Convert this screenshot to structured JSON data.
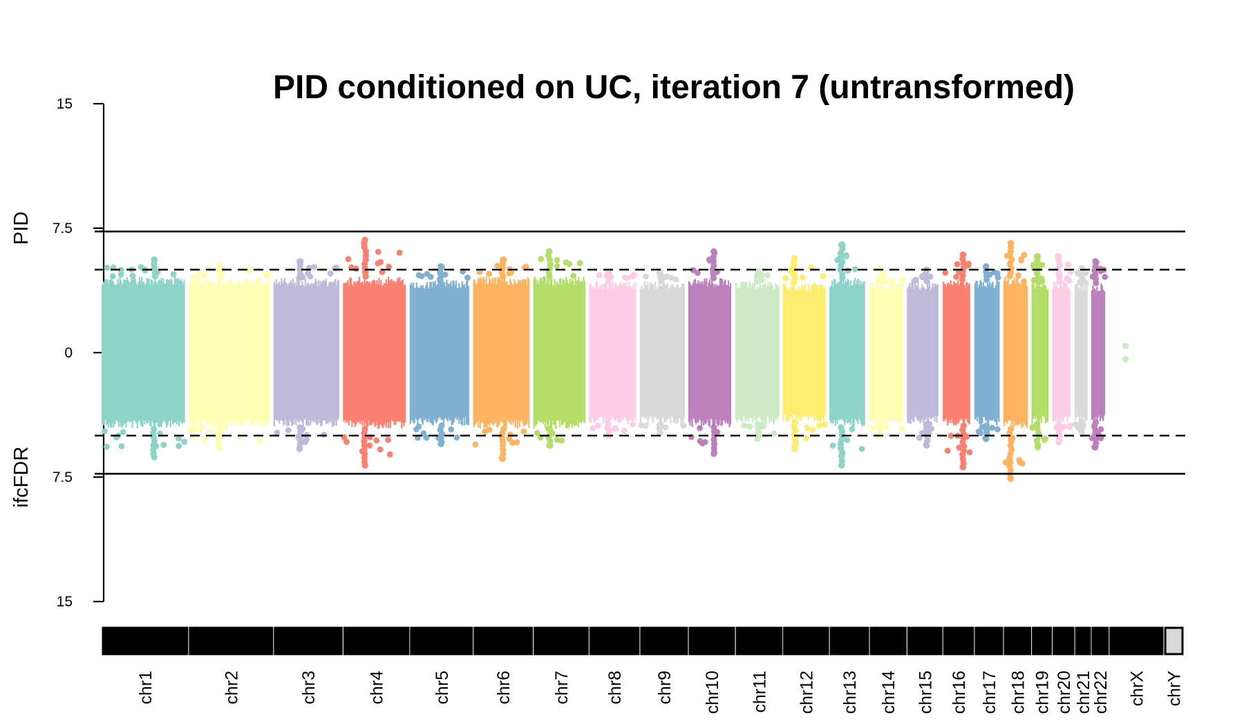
{
  "chart_data": {
    "type": "scatter",
    "subtype": "miami-plot",
    "title": "PID conditioned on UC, iteration 7 (untransformed)",
    "ylabel_top": "PID",
    "ylabel_bottom": "ifcFDR",
    "yticks": [
      {
        "value": 15,
        "label": "15"
      },
      {
        "value": 7.5,
        "label": "7.5"
      },
      {
        "value": 0,
        "label": "0"
      },
      {
        "value": -7.5,
        "label": "7.5"
      },
      {
        "value": -15,
        "label": "15"
      }
    ],
    "ylim": [
      -15,
      15
    ],
    "thresholds": [
      {
        "value": 7.3,
        "style": "solid"
      },
      {
        "value": 5.0,
        "style": "dashed"
      },
      {
        "value": -5.0,
        "style": "dashed"
      },
      {
        "value": -7.3,
        "style": "solid"
      }
    ],
    "chromosomes": [
      {
        "label": "chr1",
        "color": "#8DD3C7",
        "top_max": 5.6,
        "bottom_max": 6.3,
        "typical": 4.6
      },
      {
        "label": "chr2",
        "color": "#FFFFB3",
        "top_max": 5.3,
        "bottom_max": 5.7,
        "typical": 4.5
      },
      {
        "label": "chr3",
        "color": "#BEBADA",
        "top_max": 5.5,
        "bottom_max": 5.8,
        "typical": 4.5
      },
      {
        "label": "chr4",
        "color": "#FB8072",
        "top_max": 6.8,
        "bottom_max": 6.8,
        "typical": 4.6
      },
      {
        "label": "chr5",
        "color": "#80B1D3",
        "top_max": 5.2,
        "bottom_max": 5.5,
        "typical": 4.4
      },
      {
        "label": "chr6",
        "color": "#FDB462",
        "top_max": 5.6,
        "bottom_max": 6.4,
        "typical": 4.6
      },
      {
        "label": "chr7",
        "color": "#B3DE69",
        "top_max": 6.1,
        "bottom_max": 5.6,
        "typical": 4.6
      },
      {
        "label": "chr8",
        "color": "#FCCDE5",
        "top_max": 4.9,
        "bottom_max": 5.0,
        "typical": 4.3
      },
      {
        "label": "chr9",
        "color": "#D9D9D9",
        "top_max": 4.9,
        "bottom_max": 4.8,
        "typical": 4.3
      },
      {
        "label": "chr10",
        "color": "#BC80BD",
        "top_max": 6.1,
        "bottom_max": 6.1,
        "typical": 4.5
      },
      {
        "label": "chr11",
        "color": "#CCEBC5",
        "top_max": 4.9,
        "bottom_max": 5.2,
        "typical": 4.3
      },
      {
        "label": "chr12",
        "color": "#FFED6F",
        "top_max": 5.7,
        "bottom_max": 5.8,
        "typical": 4.2
      },
      {
        "label": "chr13",
        "color": "#8DD3C7",
        "top_max": 6.5,
        "bottom_max": 6.8,
        "typical": 4.5
      },
      {
        "label": "chr14",
        "color": "#FFFFB3",
        "top_max": 5.1,
        "bottom_max": 5.0,
        "typical": 4.3
      },
      {
        "label": "chr15",
        "color": "#BEBADA",
        "top_max": 5.0,
        "bottom_max": 5.6,
        "typical": 4.3
      },
      {
        "label": "chr16",
        "color": "#FB8072",
        "top_max": 5.9,
        "bottom_max": 6.9,
        "typical": 4.4
      },
      {
        "label": "chr17",
        "color": "#80B1D3",
        "top_max": 5.2,
        "bottom_max": 5.2,
        "typical": 4.4
      },
      {
        "label": "chr18",
        "color": "#FDB462",
        "top_max": 6.6,
        "bottom_max": 7.6,
        "typical": 4.6
      },
      {
        "label": "chr19",
        "color": "#B3DE69",
        "top_max": 5.8,
        "bottom_max": 5.7,
        "typical": 4.3
      },
      {
        "label": "chr20",
        "color": "#FCCDE5",
        "top_max": 5.8,
        "bottom_max": 5.4,
        "typical": 4.3
      },
      {
        "label": "chr21",
        "color": "#D9D9D9",
        "top_max": 5.1,
        "bottom_max": 4.9,
        "typical": 4.2
      },
      {
        "label": "chr22",
        "color": "#BC80BD",
        "top_max": 5.5,
        "bottom_max": 5.7,
        "typical": 4.2
      },
      {
        "label": "chrX",
        "color": "#CCEBC5",
        "top_max": 0.4,
        "bottom_max": 0.4,
        "typical": 0.4
      },
      {
        "label": "chrY",
        "color": "#FFED6F",
        "top_max": 0,
        "bottom_max": 0,
        "typical": 0
      }
    ],
    "grid": false,
    "legend": "none"
  }
}
